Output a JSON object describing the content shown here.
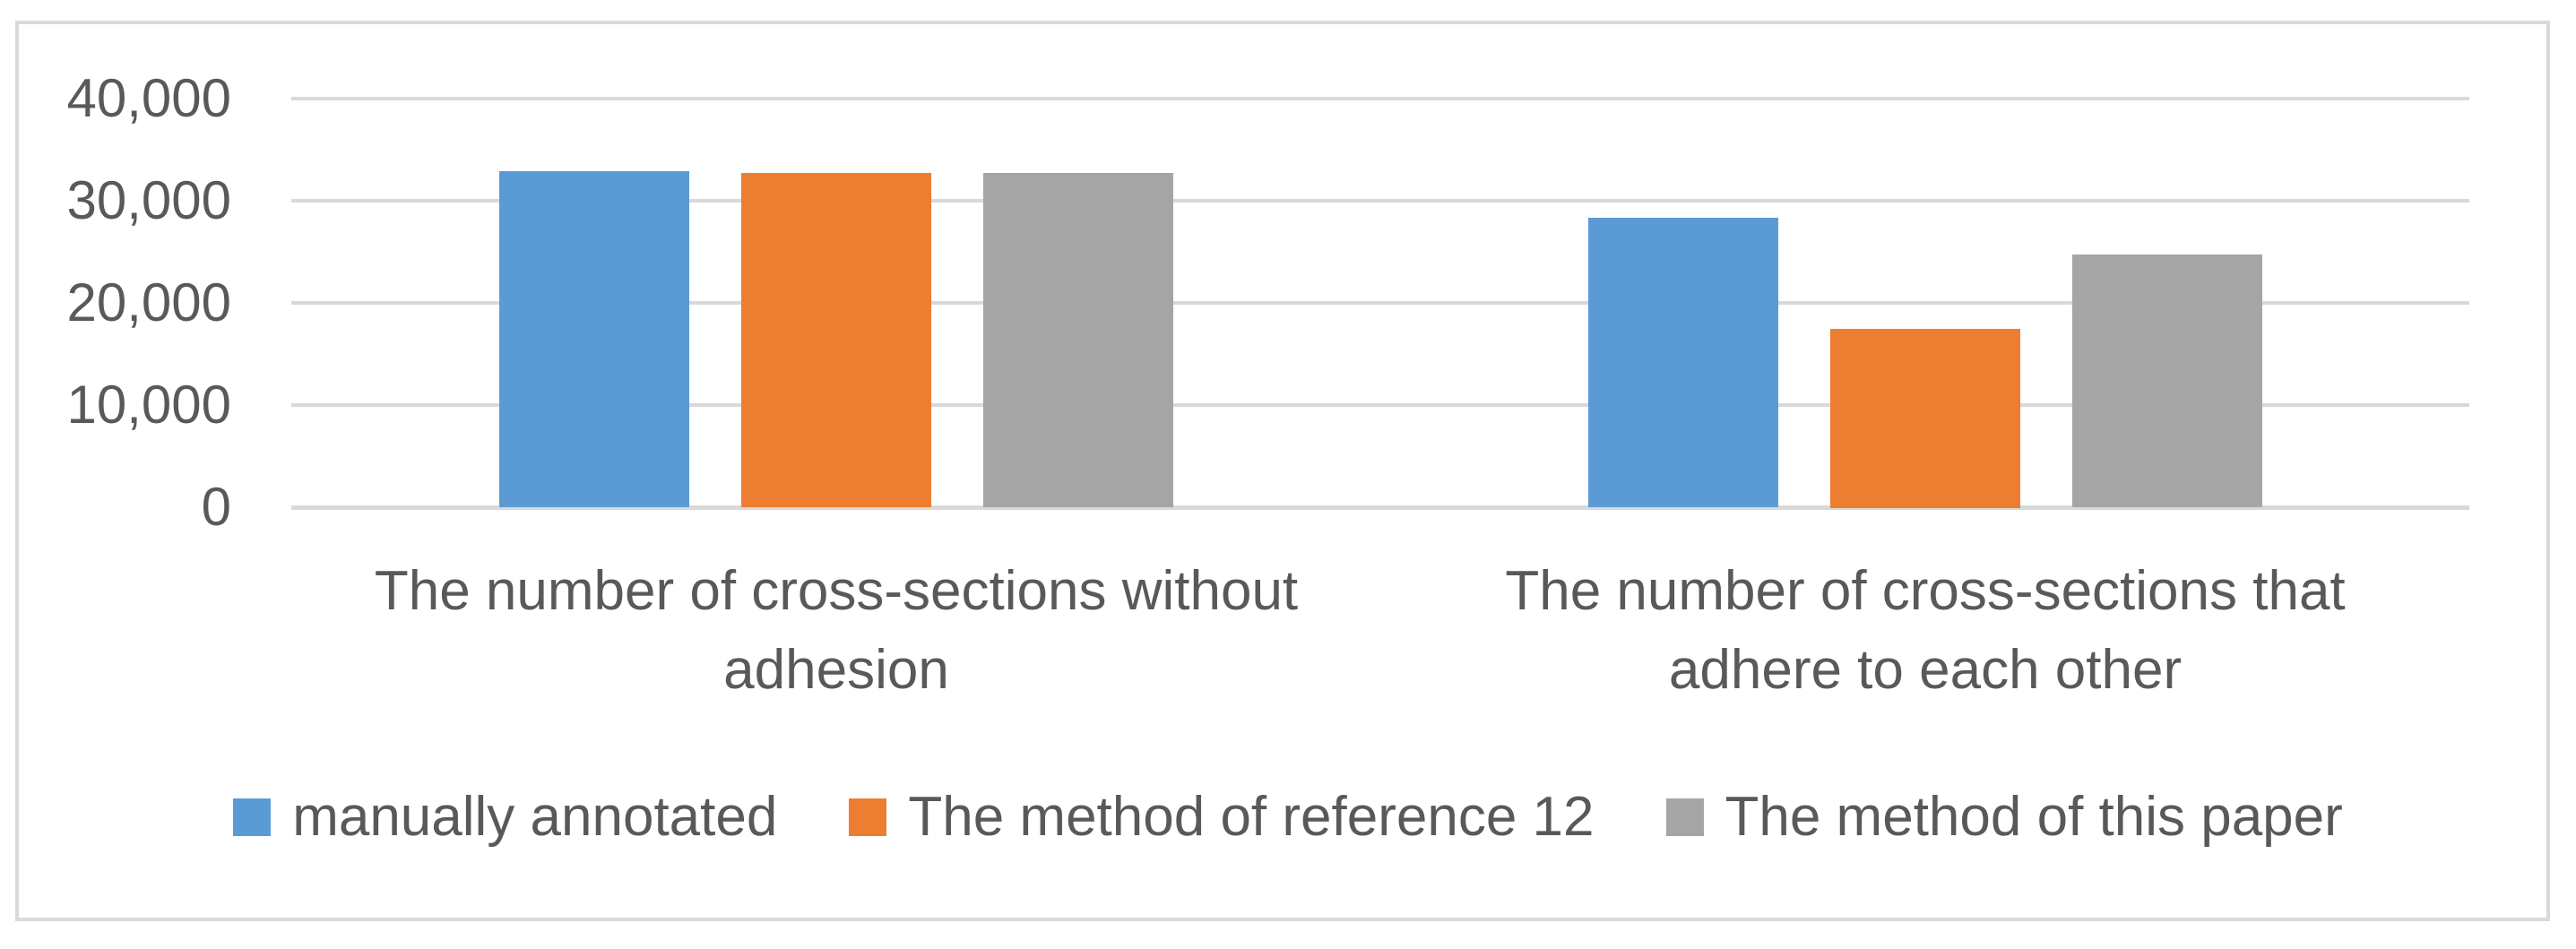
{
  "page": {
    "background_color": "#ffffff",
    "frame_border_color": "#d9d9d9"
  },
  "chart_data": {
    "type": "bar",
    "title": "",
    "xlabel": "",
    "ylabel": "",
    "categories": [
      "The number of cross-sections without adhesion",
      "The number of cross-sections that adhere to each other"
    ],
    "category_label_lines": [
      [
        "The number of cross-sections without",
        "adhesion"
      ],
      [
        "The number of cross-sections that",
        "adhere to each other"
      ]
    ],
    "series": [
      {
        "name": "manually annotated",
        "color": "#5B9BD5",
        "values": [
          32900,
          28300
        ]
      },
      {
        "name": "The method of reference 12",
        "color": "#ED7D31",
        "values": [
          32700,
          17500
        ]
      },
      {
        "name": "The method of this paper",
        "color": "#A5A5A5",
        "values": [
          32750,
          24700
        ]
      }
    ],
    "ylim": [
      0,
      40000
    ],
    "ytick_step": 10000,
    "yticks": [
      {
        "value": 40000,
        "label": "40,000"
      },
      {
        "value": 30000,
        "label": "30,000"
      },
      {
        "value": 20000,
        "label": "20,000"
      },
      {
        "value": 10000,
        "label": "10,000"
      },
      {
        "value": 0,
        "label": "0"
      }
    ],
    "grid": "horizontal",
    "gridline_color": "#d9d9d9",
    "axis_line_color": "#d9d9d9",
    "text_color": "#595959",
    "legend_position": "bottom"
  }
}
